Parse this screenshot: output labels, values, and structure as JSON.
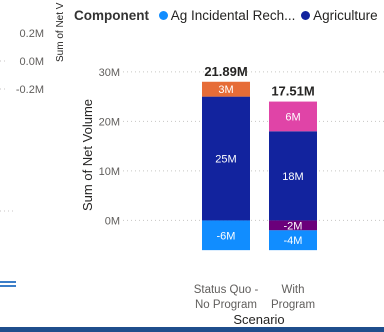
{
  "left_visual": {
    "axis_title": "Sum of Net V",
    "ticks": [
      "0.2M",
      "0.0M",
      "-0.2M"
    ]
  },
  "legend": {
    "title": "Component",
    "items": [
      {
        "label": "Ag Incidental Rech...",
        "color": "#118DFF"
      },
      {
        "label": "Agriculture",
        "color": "#12239E"
      }
    ]
  },
  "chart_data": {
    "type": "bar",
    "stacked": true,
    "categories": [
      "Status Quo - No Program",
      "With Program"
    ],
    "category_label_lines": [
      [
        "Status Quo -",
        "No Program"
      ],
      [
        "With",
        "Program"
      ]
    ],
    "xlabel": "Scenario",
    "ylabel": "Sum of Net Volume",
    "ylim": [
      -9,
      33
    ],
    "yticks": [
      "0M",
      "10M",
      "20M",
      "30M"
    ],
    "ytick_values": [
      0,
      10,
      20,
      30
    ],
    "totals": [
      "21.89M",
      "17.51M"
    ],
    "segments": [
      {
        "category": 0,
        "value": -6,
        "label": "-6M",
        "color": "#118DFF",
        "base": 0
      },
      {
        "category": 0,
        "value": 25,
        "label": "25M",
        "color": "#12239E",
        "base": 0
      },
      {
        "category": 0,
        "value": 3,
        "label": "3M",
        "color": "#E66C37",
        "base": 25
      },
      {
        "category": 1,
        "value": -2,
        "label": "-2M",
        "color": "#6B007B",
        "base": 0
      },
      {
        "category": 1,
        "value": -4,
        "label": "-4M",
        "color": "#118DFF",
        "base": -2
      },
      {
        "category": 1,
        "value": 18,
        "label": "18M",
        "color": "#12239E",
        "base": 0
      },
      {
        "category": 1,
        "value": 6,
        "label": "6M",
        "color": "#E044A7",
        "base": 18
      }
    ]
  }
}
